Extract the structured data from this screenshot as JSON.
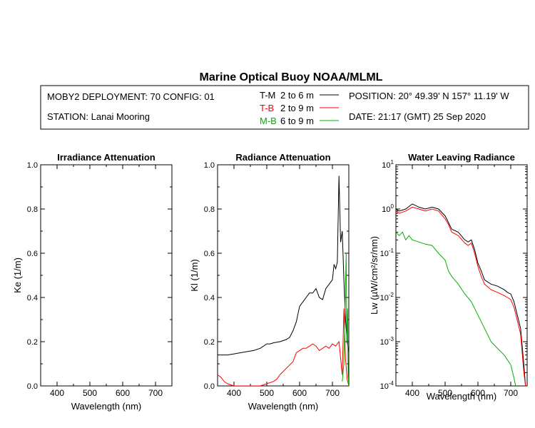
{
  "title": "Marine Optical Buoy NOAA/MLML",
  "header": {
    "deployment": "MOBY2 DEPLOYMENT: 70 CONFIG: 01",
    "station": "STATION: Lanai Mooring",
    "position": "POSITION: 20° 49.39' N   157° 11.19' W",
    "date": "DATE: 21:17 (GMT) 25 Sep 2020"
  },
  "legend": [
    {
      "abbr": "T-M",
      "range": "2 to 6  m",
      "color": "#000000"
    },
    {
      "abbr": "T-B",
      "range": "2 to 9  m",
      "color": "#ff0000"
    },
    {
      "abbr": "M-B",
      "range": "6 to 9  m",
      "color": "#00b000"
    }
  ],
  "chart_data": [
    {
      "type": "line",
      "title": "Irradiance Attenuation",
      "xlabel": "Wavelength (nm)",
      "ylabel": "Ke  (1/m)",
      "xlim": [
        350,
        750
      ],
      "ylim": [
        0,
        1
      ],
      "xticks": [
        "400",
        "500",
        "600",
        "700"
      ],
      "yticks": [
        "0.0",
        "0.2",
        "0.4",
        "0.6",
        "0.8",
        "1.0"
      ],
      "series": []
    },
    {
      "type": "line",
      "title": "Radiance Attenuation",
      "xlabel": "Wavelength (nm)",
      "ylabel": "Kl  (1/m)",
      "xlim": [
        350,
        750
      ],
      "ylim": [
        0,
        1
      ],
      "xticks": [
        "400",
        "500",
        "600",
        "700"
      ],
      "yticks": [
        "0.0",
        "0.2",
        "0.4",
        "0.6",
        "0.8",
        "1.0"
      ],
      "series": [
        {
          "name": "T-M",
          "color": "#000000",
          "x": [
            350,
            360,
            380,
            400,
            420,
            440,
            460,
            480,
            500,
            510,
            520,
            540,
            560,
            570,
            580,
            590,
            600,
            610,
            620,
            630,
            640,
            650,
            660,
            670,
            680,
            690,
            700,
            705,
            710,
            715,
            720,
            725,
            730,
            735,
            740,
            745,
            750
          ],
          "y": [
            0.14,
            0.14,
            0.14,
            0.145,
            0.15,
            0.155,
            0.16,
            0.17,
            0.19,
            0.19,
            0.195,
            0.2,
            0.21,
            0.22,
            0.25,
            0.29,
            0.36,
            0.38,
            0.4,
            0.42,
            0.42,
            0.44,
            0.4,
            0.39,
            0.44,
            0.46,
            0.48,
            0.55,
            0.53,
            0.56,
            0.95,
            0.65,
            0.7,
            0.48,
            0.3,
            0.2,
            0.15
          ]
        },
        {
          "name": "T-B",
          "color": "#ff0000",
          "x": [
            350,
            360,
            370,
            380,
            390,
            400,
            420,
            440,
            460,
            480,
            500,
            510,
            520,
            530,
            540,
            560,
            580,
            590,
            600,
            610,
            620,
            630,
            640,
            650,
            660,
            670,
            680,
            690,
            700,
            710,
            720,
            730,
            735,
            740,
            745,
            750
          ],
          "y": [
            0.05,
            0.04,
            0.02,
            0.01,
            0.005,
            0.0,
            0.0,
            0.0,
            0.0,
            0.0,
            0.01,
            0.015,
            0.02,
            0.03,
            0.05,
            0.08,
            0.11,
            0.15,
            0.16,
            0.17,
            0.17,
            0.18,
            0.19,
            0.18,
            0.16,
            0.17,
            0.18,
            0.17,
            0.19,
            0.18,
            0.2,
            0.05,
            0.35,
            0.12,
            0.03,
            0.0
          ]
        },
        {
          "name": "M-B",
          "color": "#00b000",
          "x": [
            730,
            735,
            740,
            742,
            744,
            746,
            748,
            750
          ],
          "y": [
            0.02,
            0.1,
            0.45,
            0.6,
            0.2,
            0.35,
            0.05,
            0.0
          ]
        }
      ]
    },
    {
      "type": "line",
      "title": "Water Leaving Radiance",
      "xlabel": "Wavelength (nm)",
      "ylabel": "Lw  (µW/cm²/sr/nm)",
      "yscale": "log",
      "xlim": [
        350,
        750
      ],
      "ylim": [
        0.0001,
        10
      ],
      "xticks": [
        "400",
        "500",
        "600",
        "700"
      ],
      "yticks": [
        {
          "base": "10",
          "exp": "1",
          "value": 10
        },
        {
          "base": "10",
          "exp": "0",
          "value": 1
        },
        {
          "base": "10",
          "exp": "-1",
          "value": 0.1
        },
        {
          "base": "10",
          "exp": "-2",
          "value": 0.01
        },
        {
          "base": "10",
          "exp": "-3",
          "value": 0.001
        },
        {
          "base": "10",
          "exp": "-4",
          "value": 0.0001
        }
      ],
      "series": [
        {
          "name": "T-M",
          "color": "#000000",
          "x": [
            350,
            360,
            380,
            400,
            410,
            420,
            440,
            460,
            480,
            500,
            510,
            520,
            540,
            560,
            570,
            580,
            590,
            600,
            610,
            620,
            640,
            660,
            680,
            690,
            700,
            710,
            720,
            730,
            740,
            745
          ],
          "y": [
            1.0,
            0.9,
            1.0,
            1.3,
            1.2,
            1.1,
            1.0,
            1.1,
            1.0,
            0.7,
            0.5,
            0.35,
            0.3,
            0.2,
            0.18,
            0.2,
            0.12,
            0.06,
            0.04,
            0.025,
            0.02,
            0.018,
            0.015,
            0.013,
            0.012,
            0.008,
            0.004,
            0.002,
            0.0003,
            0.0001
          ]
        },
        {
          "name": "T-B",
          "color": "#ff0000",
          "x": [
            350,
            360,
            380,
            400,
            420,
            440,
            460,
            480,
            500,
            510,
            520,
            540,
            560,
            570,
            580,
            590,
            600,
            610,
            620,
            640,
            660,
            680,
            690,
            700,
            710,
            720,
            730,
            740,
            745
          ],
          "y": [
            0.9,
            0.8,
            0.9,
            1.1,
            1.0,
            0.9,
            1.0,
            0.9,
            0.6,
            0.45,
            0.3,
            0.25,
            0.17,
            0.15,
            0.17,
            0.1,
            0.05,
            0.03,
            0.02,
            0.015,
            0.013,
            0.011,
            0.01,
            0.009,
            0.006,
            0.003,
            0.0015,
            0.0002,
            0.0001
          ]
        },
        {
          "name": "M-B",
          "color": "#00b000",
          "x": [
            350,
            360,
            370,
            380,
            390,
            400,
            420,
            440,
            460,
            480,
            500,
            510,
            520,
            540,
            560,
            580,
            600,
            620,
            640,
            660,
            680,
            700,
            710,
            715
          ],
          "y": [
            0.3,
            0.25,
            0.3,
            0.2,
            0.25,
            0.2,
            0.18,
            0.16,
            0.15,
            0.1,
            0.07,
            0.04,
            0.03,
            0.02,
            0.012,
            0.008,
            0.004,
            0.002,
            0.001,
            0.0007,
            0.0005,
            0.0003,
            0.00015,
            0.0001
          ]
        }
      ]
    }
  ]
}
